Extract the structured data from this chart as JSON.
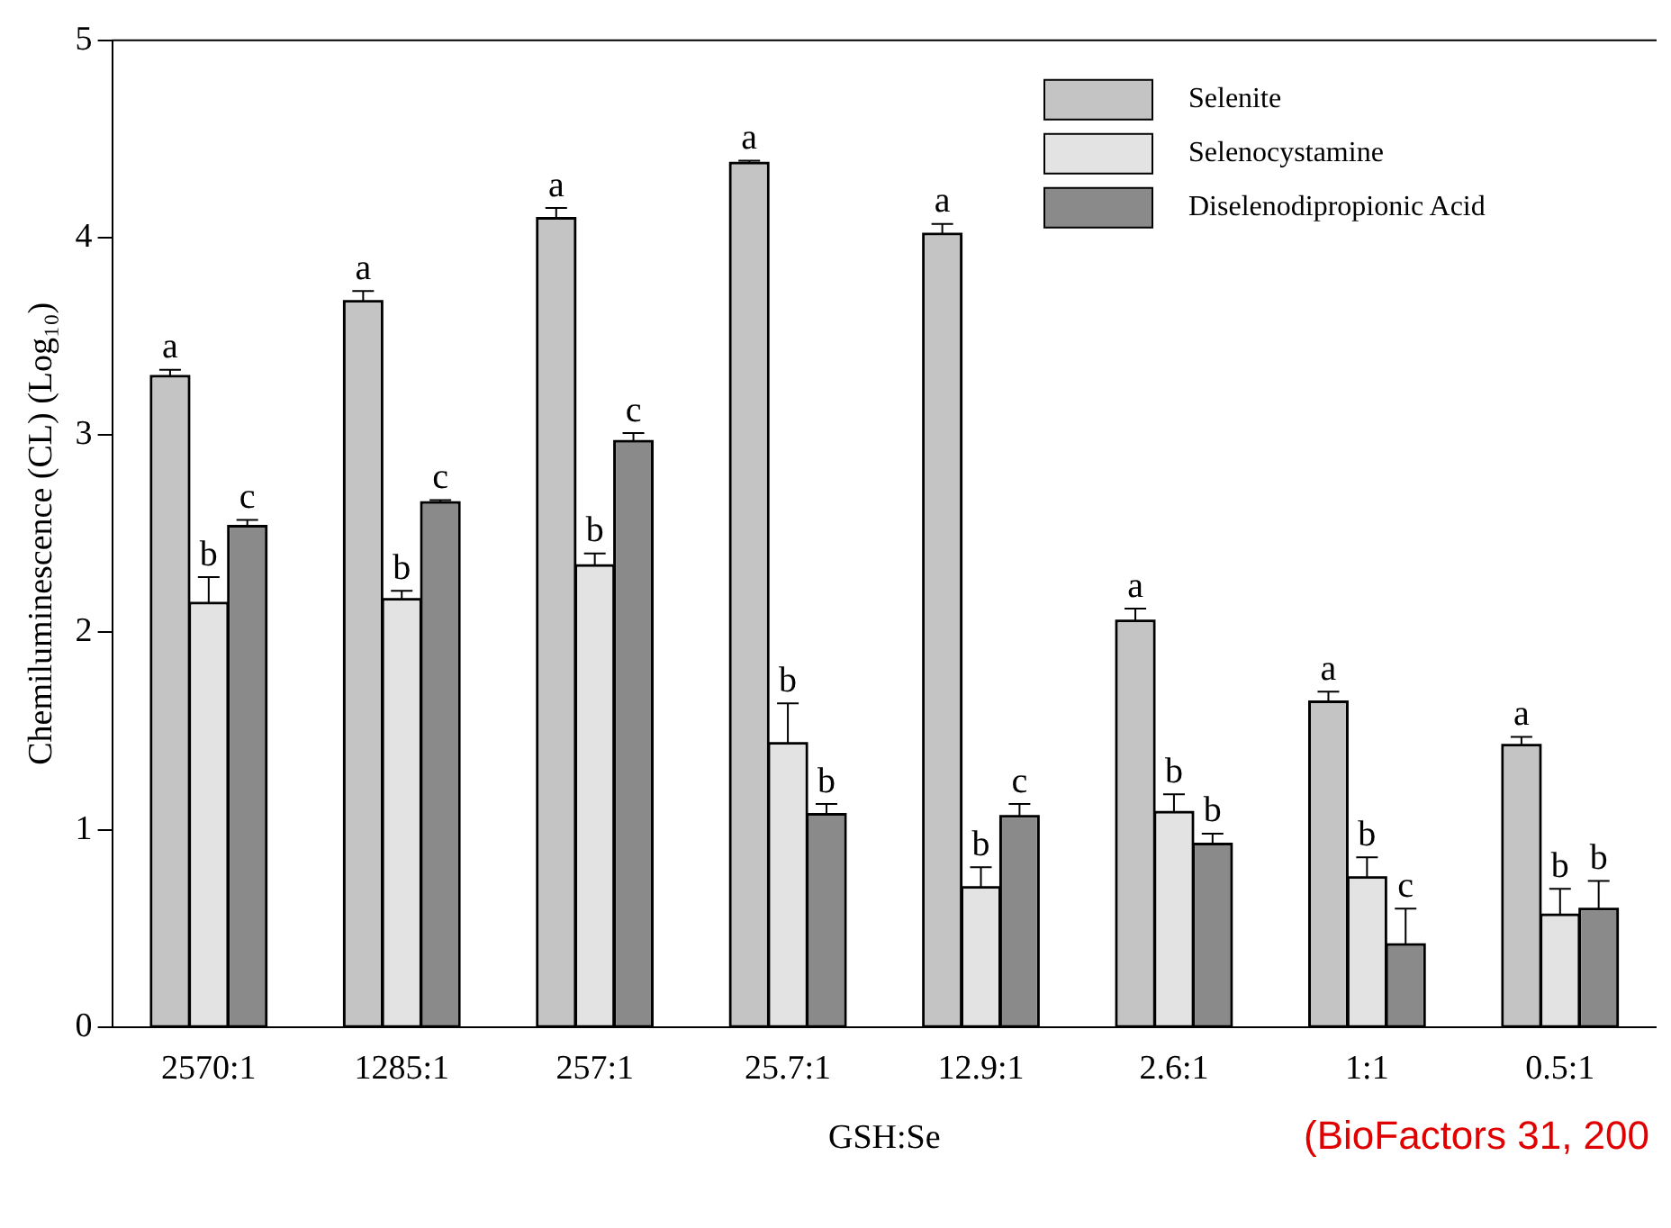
{
  "chart_data": {
    "type": "bar",
    "xlabel": "GSH:Se",
    "ylabel": "Chemiluminescence (CL) (Log₁₀)",
    "categories": [
      "2570:1",
      "1285:1",
      "257:1",
      "25.7:1",
      "12.9:1",
      "2.6:1",
      "1:1",
      "0.5:1"
    ],
    "series": [
      {
        "name": "Selenite",
        "color": "#c4c4c4",
        "values": [
          3.3,
          3.68,
          4.1,
          4.38,
          4.02,
          2.06,
          1.65,
          1.43
        ],
        "errors": [
          0.03,
          0.05,
          0.05,
          0.01,
          0.05,
          0.06,
          0.05,
          0.04
        ],
        "value_labels": [
          "a",
          "a",
          "a",
          "a",
          "a",
          "a",
          "a",
          "a"
        ]
      },
      {
        "name": "Selenocystamine",
        "color": "#e3e3e3",
        "values": [
          2.15,
          2.17,
          2.34,
          1.44,
          0.71,
          1.09,
          0.76,
          0.57
        ],
        "errors": [
          0.13,
          0.04,
          0.06,
          0.2,
          0.1,
          0.09,
          0.1,
          0.13
        ],
        "value_labels": [
          "b",
          "b",
          "b",
          "b",
          "b",
          "b",
          "b",
          "b"
        ]
      },
      {
        "name": "Diselenodipropionic Acid",
        "color": "#8a8a8a",
        "values": [
          2.54,
          2.66,
          2.97,
          1.08,
          1.07,
          0.93,
          0.42,
          0.6
        ],
        "errors": [
          0.03,
          0.01,
          0.04,
          0.05,
          0.06,
          0.05,
          0.18,
          0.14
        ],
        "value_labels": [
          "c",
          "c",
          "c",
          "b",
          "c",
          "b",
          "c",
          "b"
        ]
      }
    ],
    "ylim": [
      0,
      5
    ],
    "yticks": [
      0,
      1,
      2,
      3,
      4,
      5
    ],
    "grid": false,
    "legend": "top right",
    "annotations": [
      "(BioFactors 31, 200"
    ]
  }
}
